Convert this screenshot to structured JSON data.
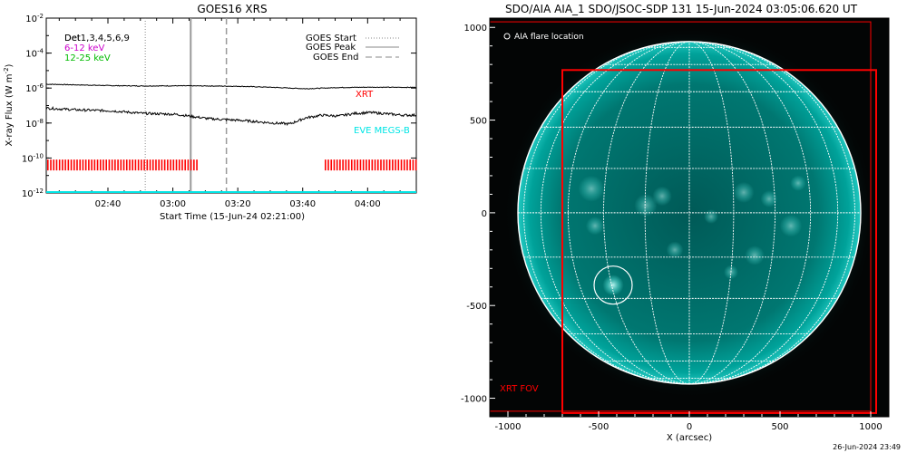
{
  "colors": {
    "xrt": "#ff0000",
    "eve": "#00e5e5",
    "ch_6_12": "#cc00cc",
    "ch_12_25": "#00bb00",
    "sun": "#009a93",
    "grid": "#ffffff"
  },
  "left_panel": {
    "title": "GOES16 XRS",
    "ylabel": "X-ray Flux (W m",
    "ylabel_sup": "-2",
    "ylabel_close": ")",
    "xlabel": "Start Time (15-Jun-24 02:21:00)",
    "ch_label_a": "Det",
    "ch_label_b": "Det1,3,4,5,6,9",
    "ch_6_12": "6-12 keV",
    "ch_12_25": "12-25 keV",
    "legend": {
      "start": "GOES Start",
      "peak": "GOES Peak",
      "end": "GOES End"
    },
    "xrt_label": "XRT",
    "eve_label": "EVE MEGS-B",
    "y_ticks": [
      {
        "exp": -2,
        "base": "10",
        "sup": "-2"
      },
      {
        "exp": -4,
        "base": "10",
        "sup": "-4"
      },
      {
        "exp": -6,
        "base": "10",
        "sup": "-6"
      },
      {
        "exp": -8,
        "base": "10",
        "sup": "-8"
      },
      {
        "exp": -10,
        "base": "10",
        "sup": "-10"
      },
      {
        "exp": -12,
        "base": "10",
        "sup": "-12"
      }
    ],
    "x_ticks": [
      {
        "t": 19,
        "label": "02:40"
      },
      {
        "t": 39,
        "label": "03:00"
      },
      {
        "t": 59,
        "label": "03:20"
      },
      {
        "t": 79,
        "label": "03:40"
      },
      {
        "t": 99,
        "label": "04:00"
      }
    ]
  },
  "right_panel": {
    "title": "SDO/AIA AIA_1 SDO/JSOC-SDP 131 15-Jun-2024 03:05:06.620 UT",
    "flare_legend": "AIA flare location",
    "xlabel": "X (arcsec)",
    "xrt_fov_label": "XRT FOV",
    "x_ticks": [
      {
        "v": -1000,
        "label": "-1000"
      },
      {
        "v": -500,
        "label": "-500"
      },
      {
        "v": 0,
        "label": "0"
      },
      {
        "v": 500,
        "label": "500"
      },
      {
        "v": 1000,
        "label": "1000"
      }
    ],
    "y_ticks": [
      {
        "v": 1000,
        "label": "1000"
      },
      {
        "v": 500,
        "label": "500"
      },
      {
        "v": 0,
        "label": "0"
      },
      {
        "v": -500,
        "label": "-500"
      },
      {
        "v": -1000,
        "label": "-1000"
      }
    ]
  },
  "footer_date": "26-Jun-2024 23:49",
  "chart_data": [
    {
      "type": "line",
      "title": "GOES16 XRS",
      "xlabel": "Start Time (15-Jun-24 02:21:00)",
      "ylabel": "X-ray Flux (W m-2)",
      "x_unit": "minutes after 15-Jun-24 02:21:00",
      "xlim": [
        0,
        114
      ],
      "ylim_log10": [
        -12,
        -2
      ],
      "y_scale": "log",
      "series": [
        {
          "name": "upper",
          "x": [
            0,
            10,
            20,
            30,
            40,
            50,
            60,
            70,
            80,
            90,
            100,
            110,
            114
          ],
          "log10_y": [
            -5.78,
            -5.82,
            -5.86,
            -5.88,
            -5.87,
            -5.88,
            -5.9,
            -5.96,
            -6.04,
            -5.97,
            -5.95,
            -5.96,
            -5.96
          ]
        },
        {
          "name": "lower",
          "x": [
            0,
            10,
            20,
            30,
            40,
            50,
            60,
            70,
            75,
            80,
            85,
            90,
            95,
            100,
            110,
            114
          ],
          "log10_y": [
            -7.15,
            -7.25,
            -7.3,
            -7.45,
            -7.5,
            -7.75,
            -7.85,
            -8.0,
            -8.05,
            -7.7,
            -7.55,
            -7.6,
            -7.45,
            -7.4,
            -7.55,
            -7.55
          ]
        },
        {
          "name": "EVE MEGS-B",
          "x": [
            0,
            114
          ],
          "log10_y": [
            -12.0,
            -12.0
          ]
        }
      ],
      "markers": {
        "goes_start": 30.5,
        "goes_peak": 44.5,
        "goes_end": 55.5
      },
      "xrt_coverage": [
        [
          0.5,
          47.0
        ],
        [
          86.0,
          114.0
        ]
      ],
      "xrt_level_log10": -10.4,
      "legend_position": "top-right"
    },
    {
      "type": "image",
      "title": "SDO/AIA AIA_1 SDO/JSOC-SDP 131 15-Jun-2024 03:05:06.620 UT",
      "xlabel": "X (arcsec)",
      "xlim": [
        -1100,
        1100
      ],
      "ylim": [
        -1100,
        1050
      ],
      "solar_radius_arcsec": 945,
      "flare_location": {
        "x": -420,
        "y": -390,
        "radius": 105
      },
      "xrt_fov": {
        "x": [
          -700,
          1030
        ],
        "y": [
          -1080,
          770
        ]
      },
      "outer_box": {
        "x": [
          -1100,
          1000
        ],
        "y": [
          -1070,
          1030
        ]
      }
    }
  ]
}
